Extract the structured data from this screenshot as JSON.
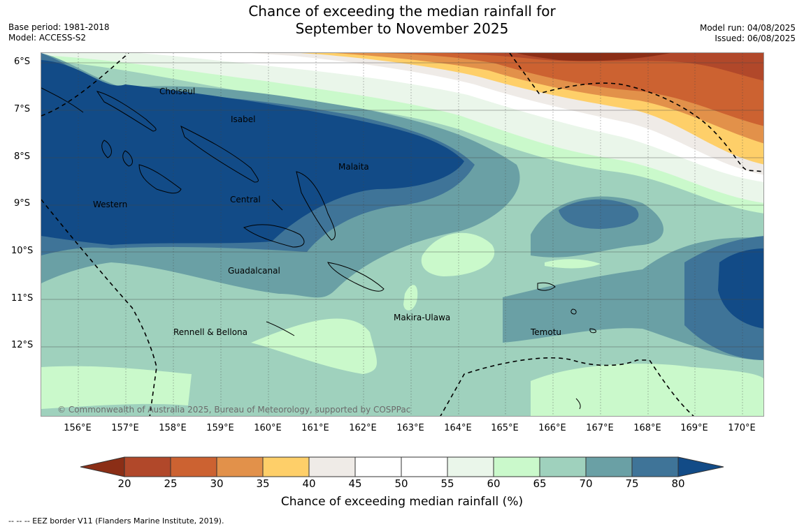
{
  "title_line1": "Chance of exceeding the median rainfall for",
  "title_line2": "September to November 2025",
  "base_period": "Base period: 1981-2018",
  "model": "Model: ACCESS-S2",
  "model_run": "Model run: 04/08/2025",
  "issued": "Issued: 06/08/2025",
  "lat_labels": [
    "6°S",
    "7°S",
    "8°S",
    "9°S",
    "10°S",
    "11°S",
    "12°S"
  ],
  "lon_labels": [
    "156°E",
    "157°E",
    "158°E",
    "159°E",
    "160°E",
    "161°E",
    "162°E",
    "163°E",
    "164°E",
    "165°E",
    "166°E",
    "167°E",
    "168°E",
    "169°E",
    "170°E"
  ],
  "regions": {
    "choiseul": "Choiseul",
    "isabel": "Isabel",
    "malaita": "Malaita",
    "western": "Western",
    "central": "Central",
    "guadalcanal": "Guadalcanal",
    "makira": "Makira-Ulawa",
    "rennell": "Rennell & Bellona",
    "temotu": "Temotu"
  },
  "copyright": "© Commonwealth of Australia 2025, Bureau of Meteorology, supported by COSPPac",
  "colorbar": {
    "title": "Chance of exceeding median rainfall (%)",
    "ticks": [
      "20",
      "25",
      "30",
      "35",
      "40",
      "45",
      "50",
      "55",
      "60",
      "65",
      "70",
      "75",
      "80"
    ],
    "colors": [
      "#8b2e16",
      "#b1482a",
      "#cc6231",
      "#e2914a",
      "#fecf69",
      "#efebe7",
      "#ffffff",
      "#ffffff",
      "#eaf6ea",
      "#caf9cb",
      "#9fd1bd",
      "#6aa0a5",
      "#3f7498",
      "#124b87"
    ]
  },
  "footnote": "-- -- -- EEZ border V11 (Flanders Marine Institute, 2019)."
}
